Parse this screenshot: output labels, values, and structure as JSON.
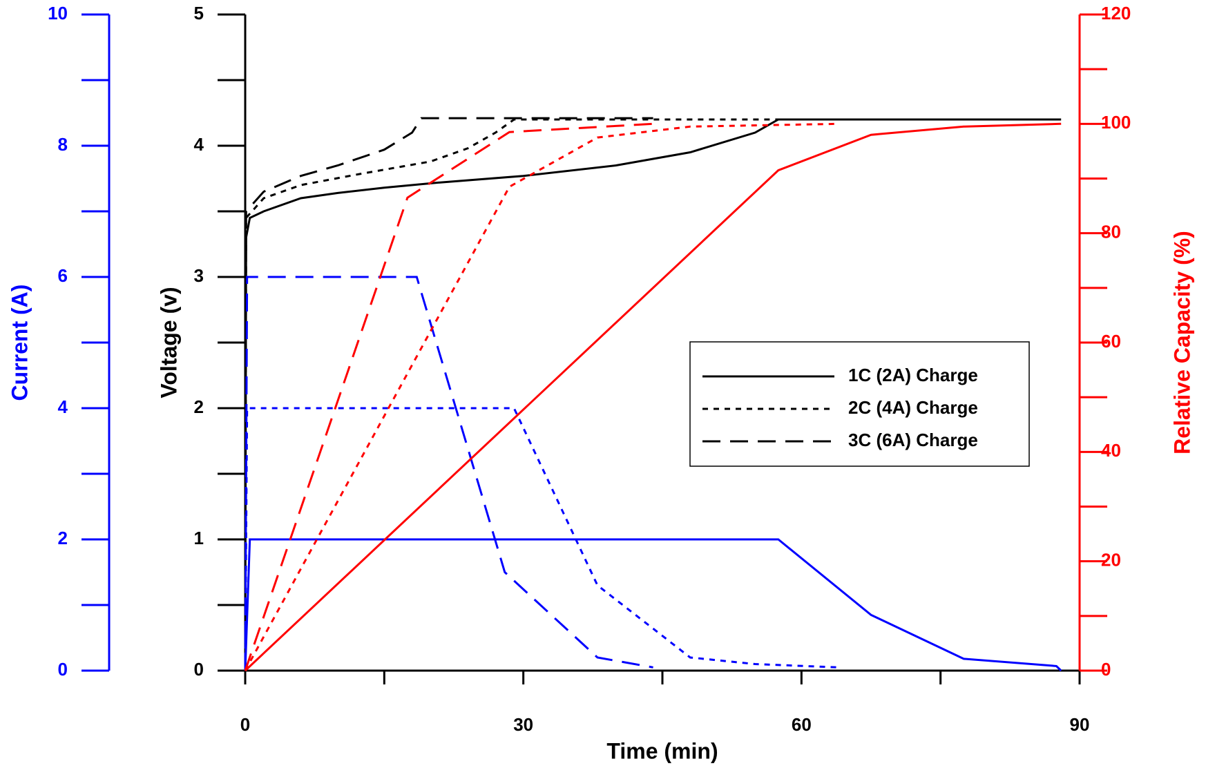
{
  "chart_data": {
    "type": "line",
    "xlabel": "Time (min)",
    "ylabel": "Voltage (v)",
    "y2label": "Relative Capacity (%)",
    "y3label": "Current (A)",
    "xlim": [
      0,
      90
    ],
    "xticks": [
      0,
      30,
      60,
      90
    ],
    "xminorticks": [
      15,
      45,
      75
    ],
    "ylim": [
      0,
      5
    ],
    "yticks": [
      0,
      1,
      2,
      3,
      4,
      5
    ],
    "yminorticks": [
      0.5,
      1.5,
      2.5,
      3.5,
      4.5
    ],
    "y2lim": [
      0,
      120
    ],
    "y2ticks": [
      0,
      20,
      40,
      60,
      80,
      100,
      120
    ],
    "y2minorticks": [
      10,
      30,
      50,
      70,
      90,
      110
    ],
    "y3lim": [
      0,
      10
    ],
    "y3ticks": [
      0,
      2,
      4,
      6,
      8,
      10
    ],
    "y3minorticks": [
      1,
      3,
      5,
      7,
      9
    ],
    "series": [
      {
        "name": "1C (2A) Charge",
        "color": "#000000",
        "dash": "solid",
        "axis": "y",
        "x": [
          0,
          0.1,
          0.5,
          2,
          6,
          10,
          15,
          21,
          30,
          40,
          48,
          55,
          57.5,
          88
        ],
        "values": [
          0,
          3.3,
          3.45,
          3.5,
          3.6,
          3.64,
          3.68,
          3.72,
          3.77,
          3.85,
          3.95,
          4.1,
          4.2,
          4.2
        ]
      },
      {
        "name": "2C (4A) Charge",
        "color": "#000000",
        "dash": "short",
        "axis": "y",
        "x": [
          0,
          0.1,
          2,
          6,
          12,
          20,
          24,
          27,
          29,
          64
        ],
        "values": [
          0,
          3.45,
          3.6,
          3.7,
          3.78,
          3.88,
          3.98,
          4.1,
          4.2,
          4.2
        ]
      },
      {
        "name": "3C (6A) Charge",
        "color": "#000000",
        "dash": "long",
        "axis": "y",
        "x": [
          0,
          0.1,
          2,
          6,
          10,
          15,
          18,
          19,
          44
        ],
        "values": [
          0,
          3.5,
          3.65,
          3.77,
          3.85,
          3.97,
          4.1,
          4.21,
          4.21
        ]
      },
      {
        "color": "#0000ff",
        "dash": "solid",
        "axis": "y3",
        "x": [
          0,
          0.5,
          57.5,
          67.5,
          77.5,
          87.5,
          88
        ],
        "values": [
          0,
          2,
          2,
          0.85,
          0.18,
          0.07,
          0
        ]
      },
      {
        "color": "#0000ff",
        "dash": "short",
        "axis": "y3",
        "x": [
          0,
          0.2,
          29,
          38,
          48,
          55,
          64
        ],
        "values": [
          0,
          4,
          4,
          1.3,
          0.2,
          0.1,
          0.05
        ]
      },
      {
        "color": "#0000ff",
        "dash": "long",
        "axis": "y3",
        "x": [
          0,
          0.2,
          18.5,
          28,
          38,
          44
        ],
        "values": [
          0,
          6,
          6,
          1.5,
          0.2,
          0.05
        ]
      },
      {
        "color": "#ff0000",
        "dash": "solid",
        "axis": "y2",
        "x": [
          0,
          57.5,
          67.5,
          77.5,
          88
        ],
        "values": [
          0,
          91.5,
          98,
          99.5,
          100
        ]
      },
      {
        "color": "#ff0000",
        "dash": "short",
        "axis": "y2",
        "x": [
          0,
          28.5,
          38,
          48,
          64
        ],
        "values": [
          0,
          88.5,
          97.5,
          99.5,
          100
        ]
      },
      {
        "color": "#ff0000",
        "dash": "long",
        "axis": "y2",
        "x": [
          0,
          17.5,
          28.5,
          44
        ],
        "values": [
          0,
          86.5,
          98.5,
          100
        ]
      }
    ]
  }
}
